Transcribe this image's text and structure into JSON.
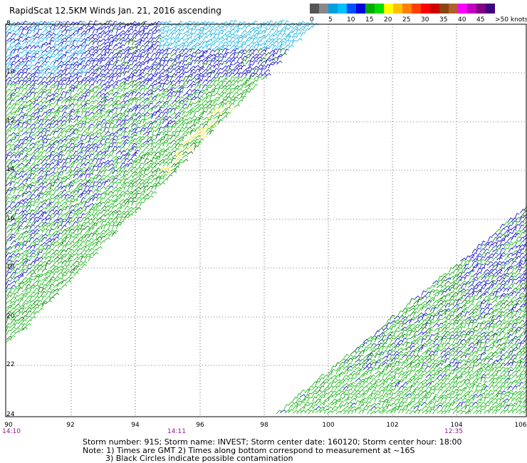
{
  "title": "RapidScat 12.5KM Winds Jan. 21, 2016 ascending",
  "legend": {
    "colors": [
      "#555555",
      "#888888",
      "#00a0e0",
      "#00c0ff",
      "#0050ff",
      "#0000dd",
      "#00aa00",
      "#00dd00",
      "#ffff00",
      "#ffc000",
      "#ff8000",
      "#ff4000",
      "#ff0000",
      "#cc0000",
      "#8b4513",
      "#b06030",
      "#ff00ff",
      "#c000c0",
      "#800080",
      "#400080"
    ],
    "labels": [
      "0",
      "5",
      "10",
      "15",
      "20",
      "25",
      "30",
      "35",
      "40",
      "45",
      ">50 knots"
    ]
  },
  "y_ticks": [
    "8",
    "10",
    "12",
    "14",
    "16",
    "18",
    "20",
    "22",
    "24"
  ],
  "x_ticks": [
    "90",
    "92",
    "94",
    "96",
    "98",
    "100",
    "102",
    "104",
    "106"
  ],
  "time_labels": [
    "14:10",
    "14:11",
    "12:35"
  ],
  "footer": {
    "line1": "Storm number: 91S;   Storm name: INVEST;   Storm center date: 160120;   Storm center hour: 18:00",
    "line2": "Note: 1) Times are GMT  2) Times along bottom correspond to measurement at ~16S",
    "line3": "3) Black Circles indicate possible contamination"
  }
}
